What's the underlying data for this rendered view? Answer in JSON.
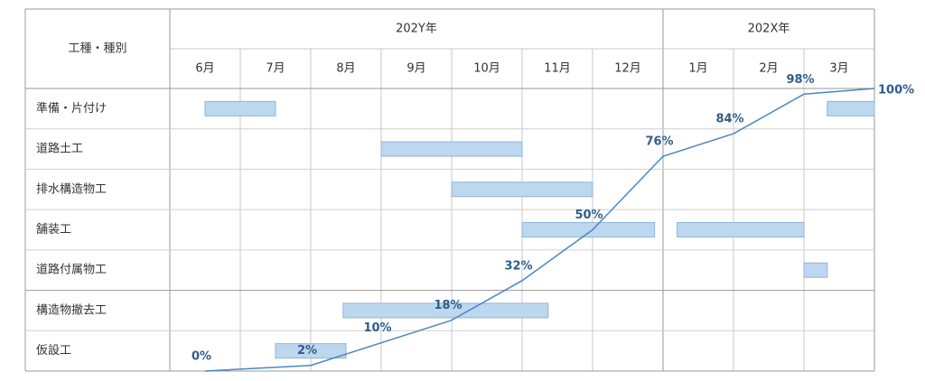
{
  "chart_data": {
    "type": "gantt",
    "header": "工種・種別",
    "years": [
      {
        "label": "202Y年",
        "months": [
          "6月",
          "7月",
          "8月",
          "9月",
          "10月",
          "11月",
          "12月"
        ]
      },
      {
        "label": "202X年",
        "months": [
          "1月",
          "2月",
          "3月"
        ]
      }
    ],
    "xlim": [
      0,
      10
    ],
    "bar_color": "#bdd7ee",
    "tasks": [
      {
        "name": "準備・片付け",
        "bars": [
          [
            0.5,
            1.5
          ],
          [
            9.33,
            10
          ]
        ]
      },
      {
        "name": "道路土工",
        "bars": [
          [
            3,
            5
          ]
        ]
      },
      {
        "name": "排水構造物工",
        "bars": [
          [
            4,
            6
          ]
        ]
      },
      {
        "name": "舗装工",
        "bars": [
          [
            5,
            6.88
          ],
          [
            7.2,
            9
          ]
        ]
      },
      {
        "name": "道路付属物工",
        "bars": [
          [
            9,
            9.33
          ]
        ]
      },
      {
        "name": "構造物撤去工",
        "bars": [
          [
            2.46,
            5.37
          ]
        ]
      },
      {
        "name": "仮設工",
        "bars": [
          [
            1.5,
            2.5
          ]
        ]
      }
    ],
    "curve": {
      "color": "#4a86c5",
      "ylim": [
        0,
        100
      ],
      "x": [
        0.5,
        2,
        3,
        4,
        5,
        6,
        7,
        8,
        9,
        10
      ],
      "values": [
        0,
        2,
        10,
        18,
        32,
        50,
        76,
        84,
        98,
        100
      ],
      "value_labels": [
        "0%",
        "2%",
        "10%",
        "18%",
        "32%",
        "50%",
        "76%",
        "84%",
        "98%",
        "100%"
      ]
    }
  }
}
